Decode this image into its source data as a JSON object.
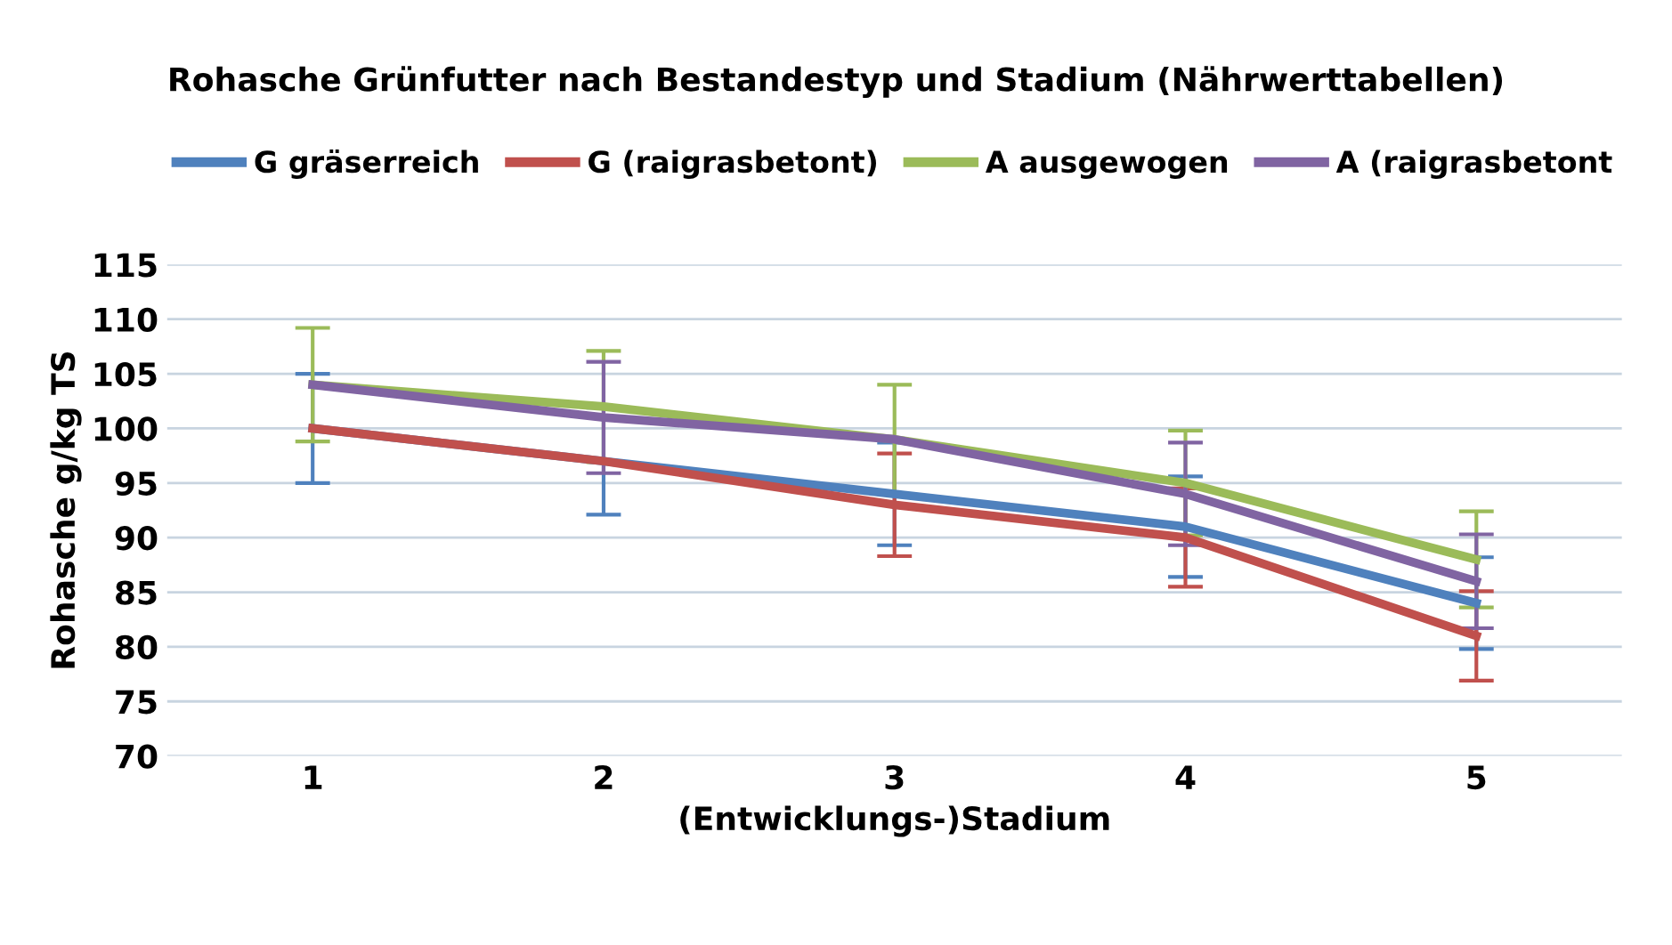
{
  "chart_data": {
    "type": "line",
    "title": "Rohasche Grünfutter nach Bestandestyp und Stadium (Nährwerttabellen)",
    "xlabel": "(Entwicklungs-)Stadium",
    "ylabel": "Rohasche g/kg TS",
    "categories": [
      "1",
      "2",
      "3",
      "4",
      "5"
    ],
    "series": [
      {
        "name": "G gräserreich",
        "color": "#4f81bd",
        "values": [
          100,
          97,
          94,
          91,
          84
        ],
        "errors": [
          5,
          4.9,
          4.7,
          4.6,
          4.2
        ]
      },
      {
        "name": "G (raigrasbetont)",
        "color": "#c0504d",
        "values": [
          100,
          97,
          93,
          90,
          81
        ],
        "errors": [
          null,
          null,
          4.7,
          4.5,
          4.1
        ]
      },
      {
        "name": "A ausgewogen",
        "color": "#9bbb59",
        "values": [
          104,
          102,
          99,
          95,
          88
        ],
        "errors": [
          5.2,
          5.1,
          5,
          4.8,
          4.4
        ]
      },
      {
        "name": "A (raigrasbetont",
        "color": "#8064a2",
        "values": [
          104,
          101,
          99,
          94,
          86
        ],
        "errors": [
          null,
          5.1,
          null,
          4.7,
          4.3
        ]
      }
    ],
    "ylim": [
      70,
      115
    ],
    "yticks": [
      70,
      75,
      80,
      85,
      90,
      95,
      100,
      105,
      110,
      115
    ],
    "grid": "y",
    "legend": "top",
    "marker": "none",
    "line_style": "solid"
  }
}
